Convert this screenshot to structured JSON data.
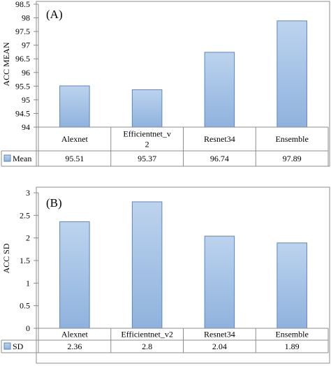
{
  "colors": {
    "bar_fill_top": "#bcd3ee",
    "bar_fill_bottom": "#8fb2dd",
    "bar_stroke": "#5b86c0",
    "frame": "#8c8c8c",
    "axis": "#8c8c8c",
    "text": "#000000"
  },
  "chart_data": [
    {
      "type": "bar",
      "title": "(A)",
      "ylabel": "ACC MEAN",
      "xlabel": "",
      "categories": [
        "Alexnet",
        "Efficientnet_v2",
        "Resnet34",
        "Ensemble"
      ],
      "category_labels": [
        [
          "Alexnet"
        ],
        [
          "Efficientnet_v",
          "2"
        ],
        [
          "Resnet34"
        ],
        [
          "Ensemble"
        ]
      ],
      "series": [
        {
          "name": "Mean",
          "values": [
            95.51,
            95.37,
            96.74,
            97.89
          ]
        }
      ],
      "table_values": [
        "95.51",
        "95.37",
        "96.74",
        "97.89"
      ],
      "ylim": [
        94,
        98.5
      ],
      "yticks": [
        "94",
        "94.5",
        "95",
        "95.5",
        "96",
        "96.5",
        "97",
        "97.5",
        "98",
        "98.5"
      ],
      "grid": false,
      "data_table": true
    },
    {
      "type": "bar",
      "title": "(B)",
      "ylabel": "ACC SD",
      "xlabel": "",
      "categories": [
        "Alexnet",
        "Efficientnet_v2",
        "Resnet34",
        "Ensemble"
      ],
      "category_labels": [
        [
          "Alexnet"
        ],
        [
          "Efficientnet_v2"
        ],
        [
          "Resnet34"
        ],
        [
          "Ensemble"
        ]
      ],
      "series": [
        {
          "name": "SD",
          "values": [
            2.36,
            2.8,
            2.04,
            1.89
          ]
        }
      ],
      "table_values": [
        "2.36",
        "2.8",
        "2.04",
        "1.89"
      ],
      "ylim": [
        0,
        3
      ],
      "yticks": [
        "0",
        "0.5",
        "1",
        "1.5",
        "2",
        "2.5",
        "3"
      ],
      "grid": false,
      "data_table": true
    }
  ]
}
